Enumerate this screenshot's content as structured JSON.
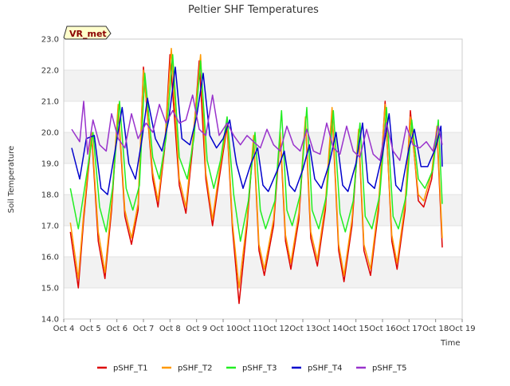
{
  "chart_data": {
    "type": "line",
    "title": "Peltier SHF Temperatures",
    "xlabel": "Time",
    "ylabel": "Soil Temperature",
    "ylim": [
      14.0,
      23.0
    ],
    "y_ticks": [
      "14.0",
      "15.0",
      "16.0",
      "17.0",
      "18.0",
      "19.0",
      "20.0",
      "21.0",
      "22.0",
      "23.0"
    ],
    "xlim": [
      4,
      19
    ],
    "x_ticks": [
      {
        "value": 4,
        "label": "Oct 4"
      },
      {
        "value": 5,
        "label": "Oct 5"
      },
      {
        "value": 6,
        "label": "Oct 6"
      },
      {
        "value": 7,
        "label": "Oct 7"
      },
      {
        "value": 8,
        "label": "Oct 8"
      },
      {
        "value": 9,
        "label": "Oct 9"
      },
      {
        "value": 10,
        "label": "Oct 10"
      },
      {
        "value": 11,
        "label": "Oct 11"
      },
      {
        "value": 12,
        "label": "Oct 12"
      },
      {
        "value": 13,
        "label": "Oct 13"
      },
      {
        "value": 14,
        "label": "Oct 14"
      },
      {
        "value": 15,
        "label": "Oct 15"
      },
      {
        "value": 16,
        "label": "Oct 16"
      },
      {
        "value": 17,
        "label": "Oct 17"
      },
      {
        "value": 18,
        "label": "Oct 18"
      },
      {
        "value": 19,
        "label": "Oct 19"
      }
    ],
    "grid": "horizontal bands",
    "legend_position": "bottom",
    "annotation": "VR_met",
    "series": [
      {
        "name": "pSHF_T1",
        "color": "#dd0000",
        "x": [
          4.25,
          4.55,
          4.75,
          5.05,
          5.3,
          5.55,
          5.8,
          6.05,
          6.3,
          6.55,
          6.8,
          7.0,
          7.35,
          7.55,
          7.8,
          8.0,
          8.35,
          8.6,
          8.85,
          9.1,
          9.35,
          9.6,
          9.85,
          10.15,
          10.35,
          10.6,
          10.9,
          11.15,
          11.35,
          11.55,
          11.9,
          12.15,
          12.35,
          12.55,
          12.85,
          13.1,
          13.3,
          13.55,
          13.85,
          14.1,
          14.35,
          14.55,
          14.85,
          15.1,
          15.3,
          15.55,
          15.85,
          16.1,
          16.35,
          16.55,
          16.85,
          17.05,
          17.35,
          17.55,
          17.85,
          18.05,
          18.25
        ],
        "y": [
          16.8,
          15.0,
          17.2,
          19.9,
          16.5,
          15.3,
          17.5,
          20.8,
          17.3,
          16.4,
          17.5,
          22.1,
          18.5,
          17.6,
          19.5,
          22.5,
          18.3,
          17.4,
          19.5,
          22.3,
          18.5,
          17.0,
          18.5,
          20.2,
          16.9,
          14.5,
          17.0,
          19.8,
          16.2,
          15.4,
          17.0,
          19.9,
          16.5,
          15.6,
          17.2,
          20.4,
          16.6,
          15.7,
          17.5,
          20.7,
          16.2,
          15.2,
          17.0,
          20.0,
          16.2,
          15.4,
          17.5,
          21.0,
          16.5,
          15.6,
          17.5,
          20.7,
          17.8,
          17.6,
          18.5,
          20.1,
          16.3
        ]
      },
      {
        "name": "pSHF_T2",
        "color": "#ff9900",
        "x": [
          4.25,
          4.55,
          4.75,
          5.05,
          5.3,
          5.55,
          5.8,
          6.05,
          6.3,
          6.55,
          6.8,
          7.0,
          7.35,
          7.55,
          7.8,
          8.05,
          8.35,
          8.6,
          8.85,
          9.15,
          9.35,
          9.6,
          9.85,
          10.15,
          10.35,
          10.6,
          10.9,
          11.15,
          11.35,
          11.55,
          11.9,
          12.15,
          12.35,
          12.55,
          12.85,
          13.1,
          13.3,
          13.55,
          13.85,
          14.1,
          14.35,
          14.55,
          14.85,
          15.1,
          15.3,
          15.55,
          15.85,
          16.1,
          16.35,
          16.55,
          16.85,
          17.05,
          17.35,
          17.55,
          17.85,
          18.05,
          18.25
        ],
        "y": [
          17.1,
          15.3,
          17.4,
          20.0,
          16.8,
          15.5,
          17.7,
          20.9,
          17.5,
          16.6,
          17.7,
          22.0,
          18.7,
          17.8,
          19.6,
          22.7,
          18.5,
          17.6,
          19.7,
          22.5,
          18.7,
          17.2,
          18.7,
          20.3,
          17.1,
          15.0,
          17.2,
          19.9,
          16.4,
          15.6,
          17.2,
          20.0,
          16.7,
          15.8,
          17.4,
          20.5,
          16.8,
          15.9,
          17.7,
          20.8,
          16.4,
          15.4,
          17.2,
          20.1,
          16.4,
          15.6,
          17.7,
          20.9,
          16.7,
          15.8,
          17.7,
          20.5,
          18.0,
          17.8,
          18.7,
          20.2,
          16.6
        ]
      },
      {
        "name": "pSHF_T3",
        "color": "#22ee22",
        "x": [
          4.25,
          4.55,
          4.8,
          5.1,
          5.35,
          5.6,
          5.85,
          6.1,
          6.35,
          6.6,
          6.85,
          7.05,
          7.35,
          7.6,
          7.85,
          8.1,
          8.35,
          8.65,
          8.9,
          9.15,
          9.4,
          9.65,
          9.9,
          10.15,
          10.4,
          10.65,
          10.95,
          11.2,
          11.4,
          11.6,
          11.95,
          12.2,
          12.4,
          12.6,
          12.9,
          13.15,
          13.35,
          13.6,
          13.9,
          14.15,
          14.4,
          14.6,
          14.9,
          15.15,
          15.35,
          15.6,
          15.9,
          16.15,
          16.4,
          16.6,
          16.9,
          17.1,
          17.35,
          17.6,
          17.9,
          18.1,
          18.25
        ],
        "y": [
          18.2,
          16.9,
          18.3,
          20.0,
          17.6,
          16.8,
          18.3,
          21.0,
          18.2,
          17.5,
          18.3,
          21.9,
          19.2,
          18.5,
          19.8,
          22.5,
          19.2,
          18.5,
          19.8,
          22.3,
          19.1,
          18.2,
          19.1,
          20.5,
          18.0,
          16.5,
          17.8,
          20.0,
          17.5,
          16.9,
          17.8,
          20.7,
          17.5,
          17.0,
          18.0,
          20.8,
          17.5,
          16.9,
          18.0,
          20.7,
          17.4,
          16.8,
          17.8,
          20.3,
          17.3,
          16.9,
          18.0,
          20.8,
          17.3,
          16.9,
          18.0,
          20.4,
          18.5,
          18.2,
          18.8,
          20.4,
          17.7
        ]
      },
      {
        "name": "pSHF_T4",
        "color": "#0000cc",
        "x": [
          4.3,
          4.6,
          4.85,
          5.15,
          5.4,
          5.65,
          5.95,
          6.2,
          6.45,
          6.7,
          6.95,
          7.15,
          7.45,
          7.7,
          7.95,
          8.2,
          8.45,
          8.75,
          9.0,
          9.25,
          9.5,
          9.75,
          10.0,
          10.25,
          10.5,
          10.75,
          11.05,
          11.3,
          11.5,
          11.7,
          12.05,
          12.3,
          12.5,
          12.7,
          13.0,
          13.25,
          13.45,
          13.7,
          14.0,
          14.25,
          14.5,
          14.7,
          15.0,
          15.25,
          15.45,
          15.7,
          16.0,
          16.25,
          16.5,
          16.7,
          17.0,
          17.2,
          17.45,
          17.7,
          18.0,
          18.2,
          18.25
        ],
        "y": [
          19.5,
          18.5,
          19.8,
          19.9,
          18.2,
          18.0,
          19.5,
          20.8,
          19.0,
          18.5,
          19.8,
          21.1,
          19.8,
          19.4,
          20.4,
          22.1,
          19.8,
          19.6,
          20.5,
          21.9,
          19.9,
          19.5,
          19.8,
          20.4,
          19.0,
          18.2,
          19.0,
          19.5,
          18.3,
          18.1,
          18.8,
          19.4,
          18.3,
          18.1,
          18.8,
          19.6,
          18.5,
          18.2,
          19.0,
          20.0,
          18.3,
          18.1,
          19.0,
          20.3,
          18.4,
          18.2,
          19.3,
          20.6,
          18.3,
          18.1,
          19.5,
          20.1,
          18.9,
          18.9,
          19.5,
          20.2,
          18.9
        ]
      },
      {
        "name": "pSHF_T5",
        "color": "#9933cc",
        "x": [
          4.3,
          4.6,
          4.75,
          4.9,
          5.1,
          5.35,
          5.6,
          5.8,
          6.05,
          6.3,
          6.55,
          6.8,
          7.1,
          7.35,
          7.6,
          7.85,
          8.1,
          8.35,
          8.6,
          8.85,
          9.1,
          9.35,
          9.6,
          9.85,
          10.15,
          10.4,
          10.65,
          10.9,
          11.15,
          11.4,
          11.65,
          11.9,
          12.15,
          12.4,
          12.65,
          12.9,
          13.15,
          13.4,
          13.65,
          13.9,
          14.15,
          14.4,
          14.65,
          14.9,
          15.15,
          15.4,
          15.65,
          15.9,
          16.15,
          16.4,
          16.65,
          16.9,
          17.15,
          17.4,
          17.65,
          17.9,
          18.1,
          18.25
        ],
        "y": [
          20.1,
          19.7,
          21.0,
          19.3,
          20.4,
          19.6,
          19.4,
          20.6,
          19.8,
          19.5,
          20.6,
          19.8,
          20.3,
          20.0,
          20.9,
          20.3,
          20.7,
          20.3,
          20.4,
          21.2,
          20.1,
          19.9,
          21.2,
          19.9,
          20.3,
          19.9,
          19.6,
          19.9,
          19.7,
          19.5,
          20.1,
          19.6,
          19.4,
          20.2,
          19.6,
          19.4,
          20.1,
          19.4,
          19.3,
          20.3,
          19.5,
          19.3,
          20.2,
          19.4,
          19.2,
          20.1,
          19.3,
          19.1,
          20.3,
          19.4,
          19.1,
          20.2,
          19.6,
          19.5,
          19.7,
          19.4,
          20.2,
          19.6
        ]
      }
    ]
  }
}
